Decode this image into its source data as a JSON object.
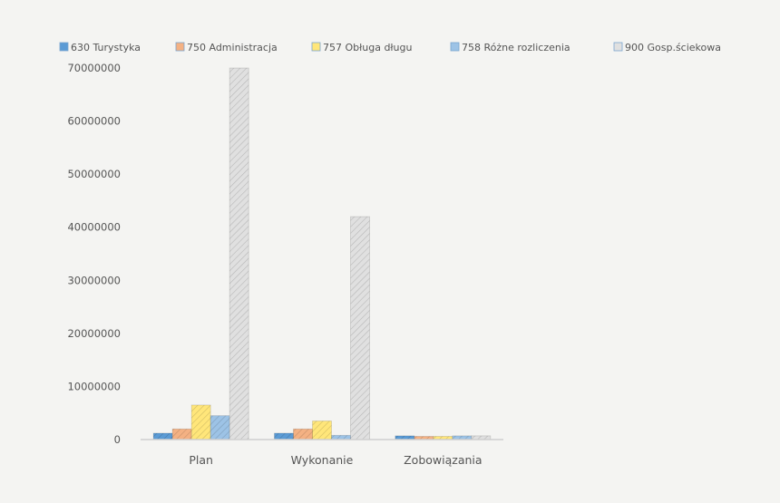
{
  "chart_data": {
    "type": "bar",
    "categories": [
      "Plan",
      "Wykonanie",
      "Zobowiązania"
    ],
    "series": [
      {
        "name": "630 Turystyka",
        "color": "#5b9bd5",
        "values": [
          1200000,
          1200000,
          700000
        ]
      },
      {
        "name": "750 Administracja",
        "color": "#f4b183",
        "values": [
          2000000,
          2000000,
          600000
        ]
      },
      {
        "name": "757 Obługa długu",
        "color": "#ffe67a",
        "values": [
          6500000,
          3500000,
          600000
        ]
      },
      {
        "name": "758 Różne rozliczenia",
        "color": "#9dc3e6",
        "values": [
          4500000,
          800000,
          700000
        ]
      },
      {
        "name": "900 Gosp.ściekowa",
        "color": "#e0e0e0",
        "values": [
          70000000,
          42000000,
          700000
        ]
      }
    ],
    "ylim": [
      0,
      70000000
    ],
    "yticks": [
      "0",
      "10000000",
      "20000000",
      "30000000",
      "40000000",
      "50000000",
      "60000000",
      "70000000"
    ],
    "legend_position": "top",
    "grid": false
  }
}
